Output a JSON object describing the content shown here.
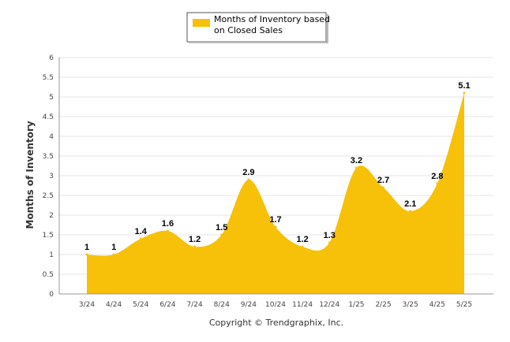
{
  "chart_data": {
    "type": "area",
    "categories": [
      "3/24",
      "4/24",
      "5/24",
      "6/24",
      "7/24",
      "8/24",
      "9/24",
      "10/24",
      "11/24",
      "12/24",
      "1/25",
      "2/25",
      "3/25",
      "4/25",
      "5/25"
    ],
    "series": [
      {
        "name": "Months of Inventory based on Closed Sales",
        "values": [
          1,
          1,
          1.4,
          1.6,
          1.2,
          1.5,
          2.9,
          1.7,
          1.2,
          1.3,
          3.2,
          2.7,
          2.1,
          2.8,
          5.1
        ],
        "color": "#f7c10a"
      }
    ],
    "data_labels": [
      "1",
      "1",
      "1.4",
      "1.6",
      "1.2",
      "1.5",
      "2.9",
      "1.7",
      "1.2",
      "1.3",
      "3.2",
      "2.7",
      "2.1",
      "2.8",
      "5.1"
    ],
    "ylabel": "Months of Inventory",
    "ylim": [
      0,
      6
    ],
    "yticks": [
      "0",
      "0.5",
      "1",
      "1.5",
      "2",
      "2.5",
      "3",
      "3.5",
      "4",
      "4.5",
      "5",
      "5.5",
      "6"
    ],
    "grid": true,
    "legend": {
      "placement": "top-center",
      "lines": [
        "Months of Inventory based",
        "on Closed Sales"
      ]
    },
    "credit": "Copyright © Trendgraphix, Inc."
  }
}
